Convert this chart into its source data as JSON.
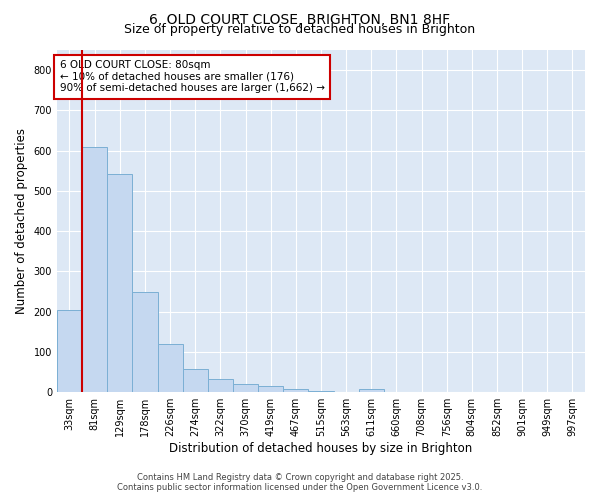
{
  "title_line1": "6, OLD COURT CLOSE, BRIGHTON, BN1 8HF",
  "title_line2": "Size of property relative to detached houses in Brighton",
  "xlabel": "Distribution of detached houses by size in Brighton",
  "ylabel": "Number of detached properties",
  "bar_color": "#c5d8f0",
  "bar_edge_color": "#7bafd4",
  "fig_background_color": "#ffffff",
  "plot_background_color": "#dde8f5",
  "grid_color": "#ffffff",
  "categories": [
    "33sqm",
    "81sqm",
    "129sqm",
    "178sqm",
    "226sqm",
    "274sqm",
    "322sqm",
    "370sqm",
    "419sqm",
    "467sqm",
    "515sqm",
    "563sqm",
    "611sqm",
    "660sqm",
    "708sqm",
    "756sqm",
    "804sqm",
    "852sqm",
    "901sqm",
    "949sqm",
    "997sqm"
  ],
  "values": [
    203,
    608,
    543,
    250,
    120,
    57,
    33,
    20,
    15,
    7,
    2,
    1,
    8,
    0,
    0,
    0,
    0,
    0,
    0,
    0,
    0
  ],
  "ylim": [
    0,
    850
  ],
  "yticks": [
    0,
    100,
    200,
    300,
    400,
    500,
    600,
    700,
    800
  ],
  "annotation_box_text": "6 OLD COURT CLOSE: 80sqm\n← 10% of detached houses are smaller (176)\n90% of semi-detached houses are larger (1,662) →",
  "annotation_box_facecolor": "#ffffff",
  "annotation_box_edgecolor": "#cc0000",
  "vline_color": "#cc0000",
  "vline_x_index": 1,
  "footnote_line1": "Contains HM Land Registry data © Crown copyright and database right 2025.",
  "footnote_line2": "Contains public sector information licensed under the Open Government Licence v3.0.",
  "title_fontsize": 10,
  "subtitle_fontsize": 9,
  "axis_label_fontsize": 8.5,
  "tick_fontsize": 7,
  "annotation_fontsize": 7.5,
  "footnote_fontsize": 6
}
